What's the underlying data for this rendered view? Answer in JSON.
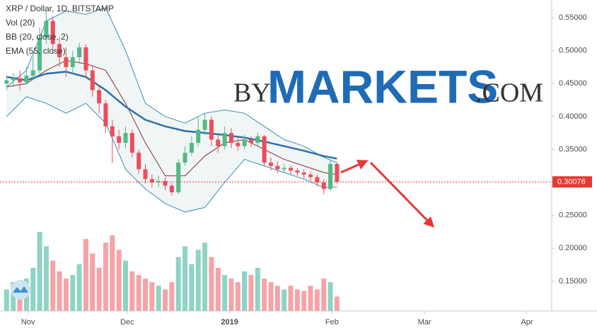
{
  "chart_data": {
    "type": "candlestick",
    "title": "XRP / Dollar, 1D, BITSTAMP",
    "indicator_labels": [
      "Vol (20)",
      "BB (20, close, 2)",
      "EMA (55, close)"
    ],
    "x": [
      2,
      4,
      6,
      8,
      10,
      12,
      14,
      16,
      18,
      20,
      22,
      24,
      26,
      28,
      30,
      32,
      34,
      36,
      38,
      40,
      42,
      44,
      46,
      48,
      50,
      52,
      54,
      56,
      58,
      60,
      62,
      64,
      66,
      68,
      70,
      72,
      74,
      76,
      78,
      80,
      82,
      84,
      86,
      88,
      90,
      92,
      94,
      96,
      98,
      100,
      102
    ],
    "open": [
      0.45,
      0.455,
      0.458,
      0.452,
      0.462,
      0.47,
      0.52,
      0.545,
      0.51,
      0.49,
      0.475,
      0.49,
      0.505,
      0.47,
      0.44,
      0.42,
      0.385,
      0.37,
      0.36,
      0.375,
      0.345,
      0.32,
      0.305,
      0.3,
      0.302,
      0.295,
      0.285,
      0.33,
      0.345,
      0.36,
      0.38,
      0.395,
      0.365,
      0.355,
      0.375,
      0.36,
      0.355,
      0.365,
      0.36,
      0.37,
      0.33,
      0.325,
      0.32,
      0.322,
      0.318,
      0.315,
      0.312,
      0.308,
      0.3,
      0.29,
      0.328
    ],
    "high": [
      0.462,
      0.466,
      0.47,
      0.475,
      0.49,
      0.535,
      0.56,
      0.552,
      0.52,
      0.505,
      0.5,
      0.512,
      0.51,
      0.478,
      0.448,
      0.425,
      0.395,
      0.38,
      0.385,
      0.38,
      0.35,
      0.328,
      0.312,
      0.31,
      0.308,
      0.3,
      0.335,
      0.355,
      0.37,
      0.398,
      0.405,
      0.4,
      0.372,
      0.385,
      0.382,
      0.368,
      0.372,
      0.37,
      0.376,
      0.372,
      0.338,
      0.332,
      0.328,
      0.326,
      0.322,
      0.32,
      0.316,
      0.312,
      0.305,
      0.335,
      0.33
    ],
    "low": [
      0.44,
      0.445,
      0.44,
      0.448,
      0.455,
      0.465,
      0.51,
      0.495,
      0.475,
      0.46,
      0.465,
      0.48,
      0.46,
      0.43,
      0.405,
      0.375,
      0.33,
      0.35,
      0.352,
      0.338,
      0.312,
      0.298,
      0.292,
      0.293,
      0.288,
      0.28,
      0.282,
      0.325,
      0.34,
      0.355,
      0.372,
      0.355,
      0.345,
      0.35,
      0.352,
      0.348,
      0.35,
      0.354,
      0.355,
      0.325,
      0.318,
      0.314,
      0.315,
      0.312,
      0.31,
      0.306,
      0.302,
      0.294,
      0.282,
      0.286,
      0.298
    ],
    "close": [
      0.455,
      0.458,
      0.452,
      0.462,
      0.47,
      0.52,
      0.545,
      0.51,
      0.49,
      0.475,
      0.49,
      0.505,
      0.47,
      0.44,
      0.42,
      0.385,
      0.37,
      0.36,
      0.375,
      0.345,
      0.32,
      0.305,
      0.3,
      0.302,
      0.295,
      0.285,
      0.33,
      0.345,
      0.36,
      0.38,
      0.395,
      0.365,
      0.355,
      0.375,
      0.36,
      0.355,
      0.365,
      0.36,
      0.37,
      0.33,
      0.325,
      0.32,
      0.322,
      0.318,
      0.315,
      0.312,
      0.308,
      0.3,
      0.29,
      0.328,
      0.301
    ],
    "volume": [
      30,
      40,
      35,
      45,
      60,
      110,
      90,
      70,
      55,
      45,
      50,
      65,
      100,
      80,
      60,
      95,
      105,
      85,
      70,
      55,
      50,
      45,
      40,
      35,
      30,
      40,
      75,
      90,
      65,
      85,
      95,
      75,
      60,
      50,
      45,
      40,
      55,
      50,
      60,
      45,
      40,
      35,
      30,
      35,
      30,
      28,
      35,
      30,
      45,
      40,
      20
    ],
    "up_color": "#53b987",
    "down_color": "#eb4d5c",
    "up_volume_color": "#8fd3c5",
    "down_volume_color": "#f5a3a6",
    "overlays": {
      "x": [
        2,
        8,
        14,
        20,
        26,
        32,
        38,
        44,
        50,
        56,
        62,
        68,
        74,
        80,
        86,
        92,
        98,
        102
      ],
      "bb_upper": [
        0.445,
        0.47,
        0.545,
        0.56,
        0.555,
        0.565,
        0.5,
        0.42,
        0.4,
        0.39,
        0.405,
        0.41,
        0.405,
        0.385,
        0.365,
        0.355,
        0.338,
        0.33
      ],
      "bb_basis": [
        0.445,
        0.45,
        0.47,
        0.485,
        0.48,
        0.47,
        0.42,
        0.36,
        0.31,
        0.31,
        0.34,
        0.36,
        0.365,
        0.35,
        0.335,
        0.325,
        0.315,
        0.312
      ],
      "bb_lower": [
        0.4,
        0.43,
        0.42,
        0.405,
        0.42,
        0.39,
        0.32,
        0.29,
        0.268,
        0.255,
        0.262,
        0.3,
        0.335,
        0.325,
        0.315,
        0.305,
        0.292,
        0.293
      ],
      "ema": [
        0.46,
        0.455,
        0.465,
        0.468,
        0.46,
        0.44,
        0.415,
        0.395,
        0.385,
        0.378,
        0.375,
        0.372,
        0.368,
        0.362,
        0.355,
        0.348,
        0.34,
        0.336
      ],
      "bb_color": "#3a8fb0",
      "basis_color": "#8b2a2a",
      "ema_color": "#2f6fa7"
    },
    "last_price": 0.30076,
    "last_price_color": "#e53935",
    "xlim": [
      0,
      167
    ],
    "xticks": [
      {
        "value": 8.5,
        "label": "Nov"
      },
      {
        "value": 38.5,
        "label": "Dec"
      },
      {
        "value": 69.5,
        "label": "2019"
      },
      {
        "value": 100.5,
        "label": "Feb"
      },
      {
        "value": 128.5,
        "label": "Mar"
      },
      {
        "value": 159.5,
        "label": "Apr"
      }
    ],
    "ylim": [
      0.1049,
      0.5768
    ],
    "yticks": [
      {
        "value": 0.55,
        "label": "0.55000"
      },
      {
        "value": 0.5,
        "label": "0.50000"
      },
      {
        "value": 0.45,
        "label": "0.45000"
      },
      {
        "value": 0.4,
        "label": "0.40000"
      },
      {
        "value": 0.35,
        "label": "0.35000"
      },
      {
        "value": 0.3,
        "label": "0.30000"
      },
      {
        "value": 0.25,
        "label": "0.25000"
      },
      {
        "value": 0.2,
        "label": "0.20000"
      },
      {
        "value": 0.15,
        "label": "0.15000"
      }
    ],
    "grid": false
  },
  "watermark": {
    "prefix": "BY",
    "main": "MARKETS",
    "suffix": ".COM"
  }
}
